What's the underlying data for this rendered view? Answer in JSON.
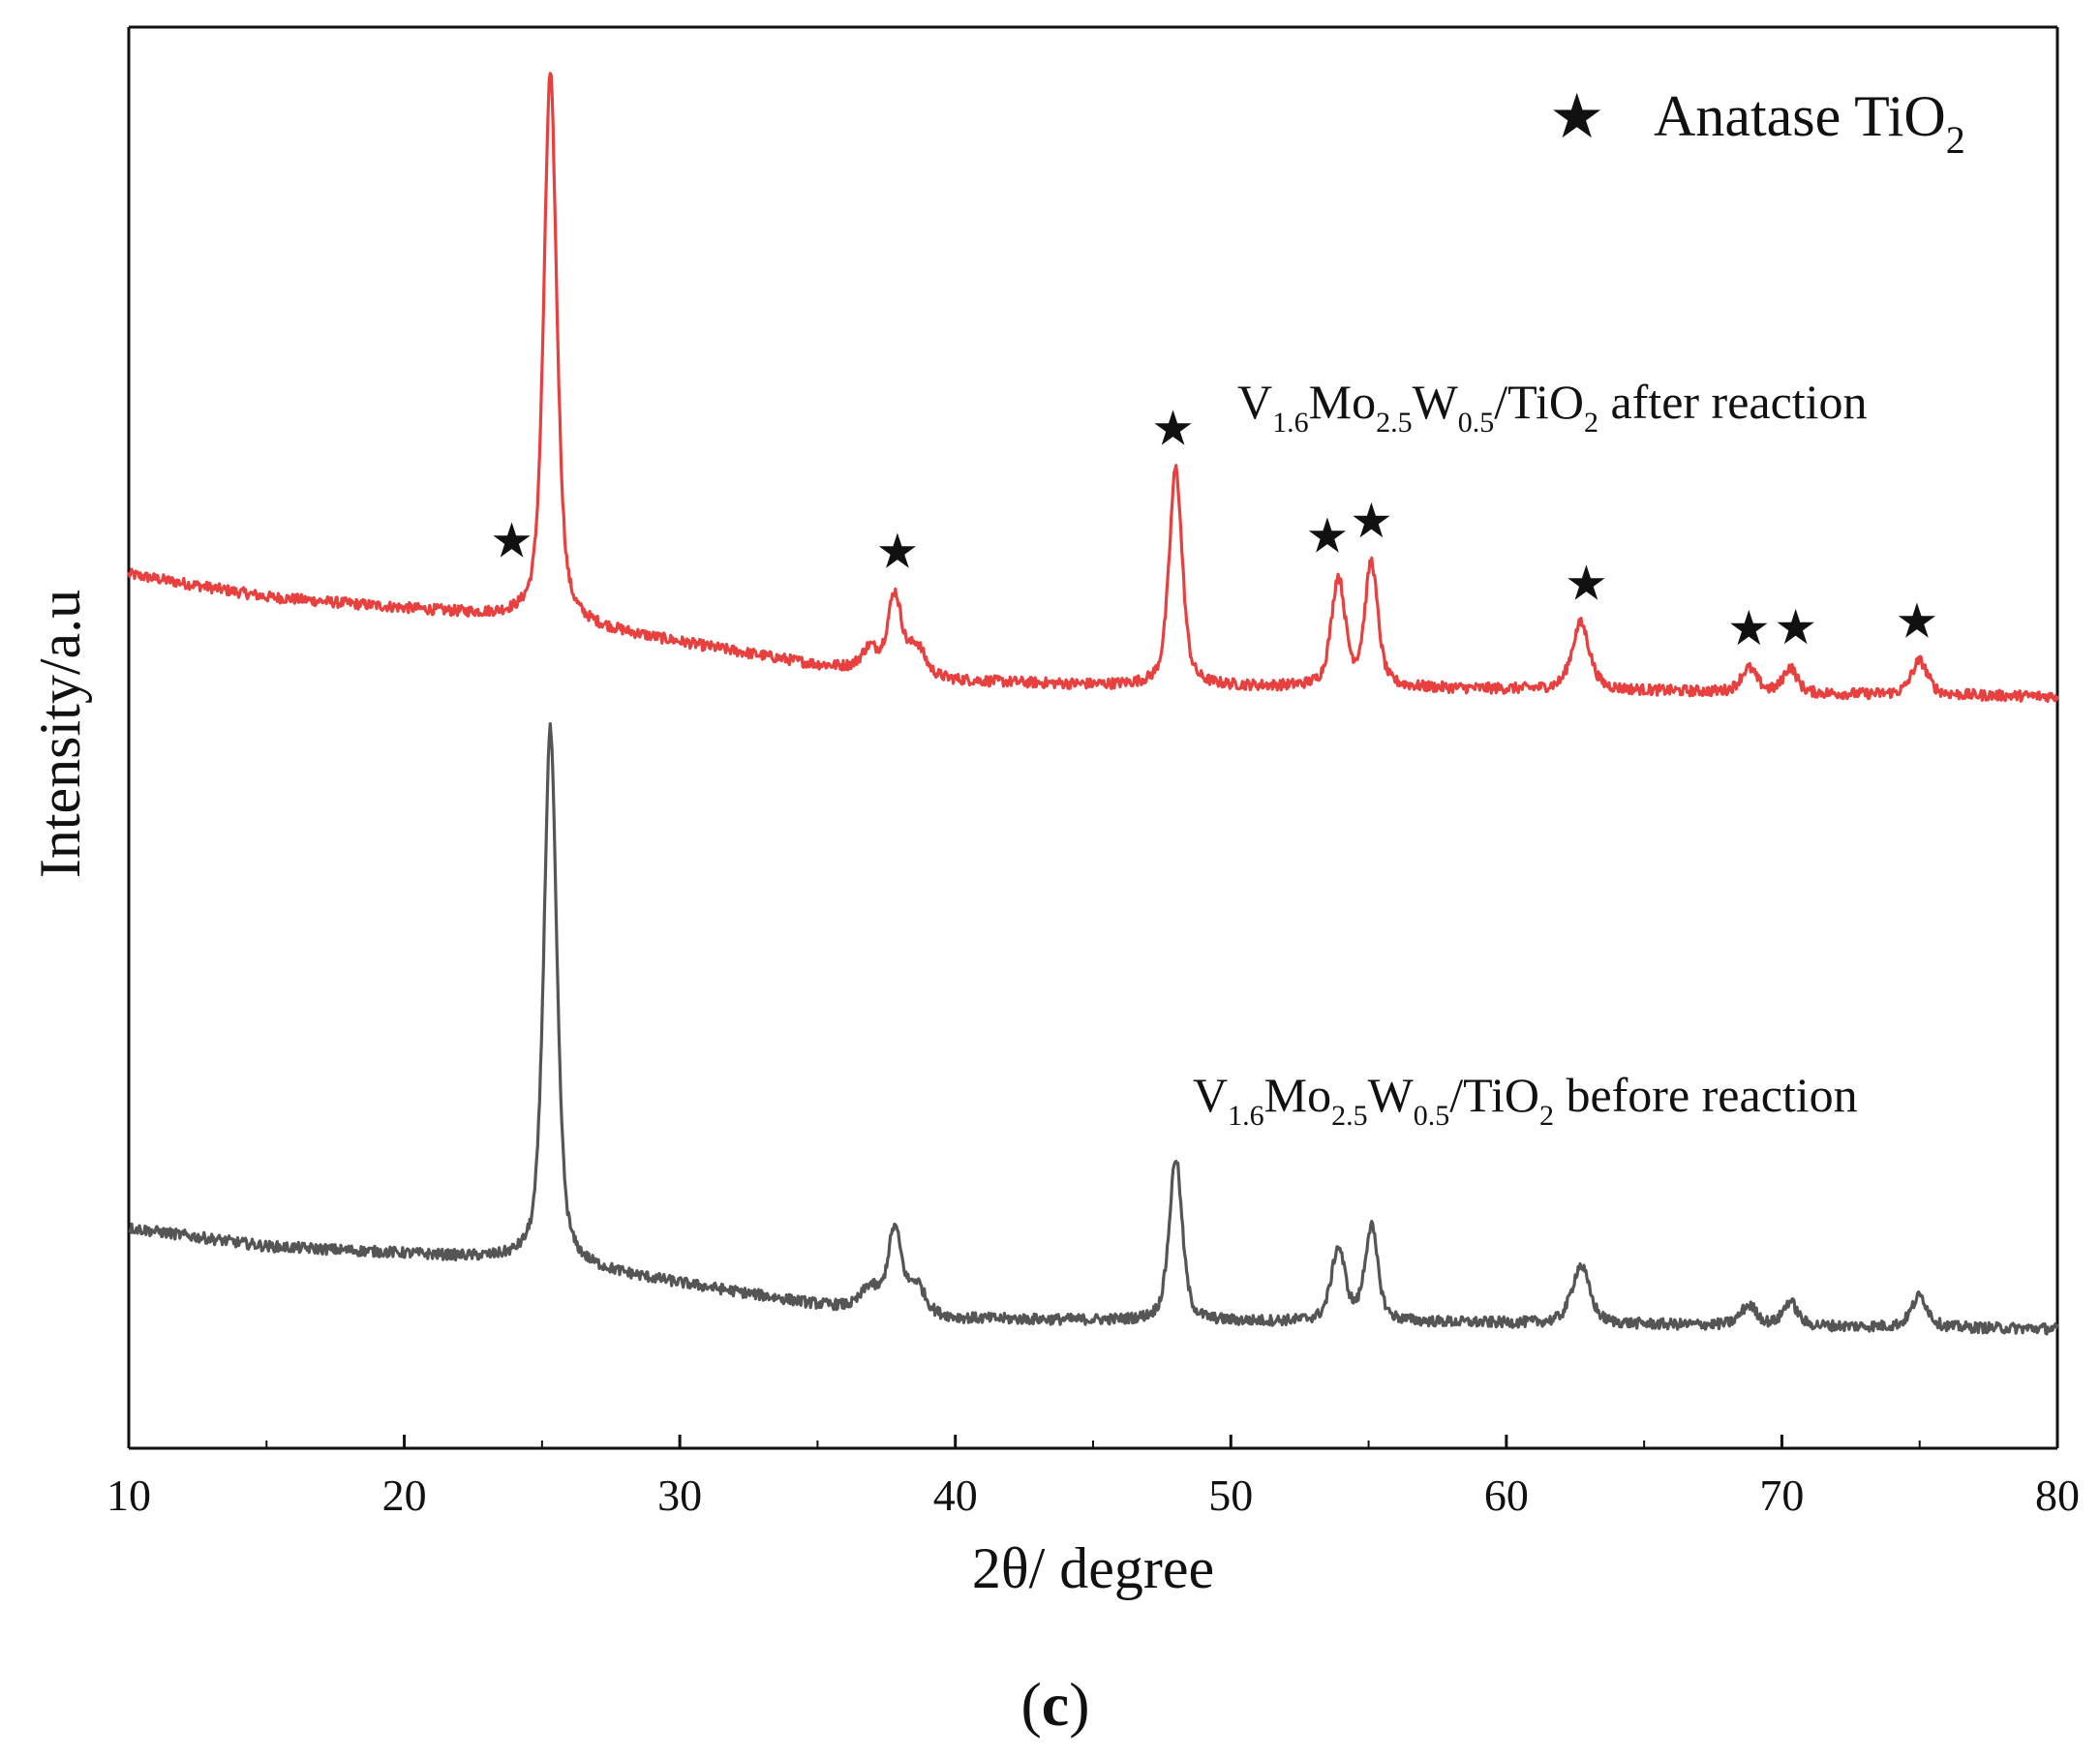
{
  "chart_data": {
    "type": "line",
    "xlabel": "2θ/ degree",
    "ylabel": "Intensity/a.u",
    "xlim": [
      10,
      80
    ],
    "x_ticks": [
      10,
      20,
      30,
      40,
      50,
      60,
      70,
      80
    ],
    "y_ticks": [],
    "grid": false,
    "y_units": "stacked arbitrary units, baseline 0 at bottom axis, 100 at top axis",
    "legend": {
      "position": "top-right",
      "marker": "★",
      "label_main": "Anatase TiO",
      "label_sub": "2"
    },
    "series": [
      {
        "name": "V1.6Mo2.5W0.5/TiO2 after reaction",
        "label_parts": {
          "v": "V",
          "v_sub": "1.6",
          "mo": "Mo",
          "mo_sub": "2.5",
          "w": "W",
          "w_sub": "0.5",
          "tio": "/TiO",
          "tio_sub": "2",
          "rest": " after reaction"
        },
        "color": "#e8403f",
        "baseline_points": [
          [
            10,
            61.5
          ],
          [
            15,
            59.9
          ],
          [
            20,
            59.1
          ],
          [
            25,
            58.3
          ],
          [
            30,
            56.7
          ],
          [
            35,
            55.1
          ],
          [
            40,
            54.0
          ],
          [
            45,
            53.7
          ],
          [
            50,
            53.6
          ],
          [
            55,
            53.5
          ],
          [
            60,
            53.4
          ],
          [
            65,
            53.3
          ],
          [
            70,
            53.1
          ],
          [
            75,
            53.0
          ],
          [
            80,
            52.9
          ]
        ],
        "peaks": [
          {
            "x": 25.3,
            "height": 38.5,
            "width": 0.28
          },
          {
            "x": 36.9,
            "height": 1.5,
            "width": 0.35
          },
          {
            "x": 37.8,
            "height": 5.5,
            "width": 0.3
          },
          {
            "x": 38.6,
            "height": 2.0,
            "width": 0.35
          },
          {
            "x": 48.0,
            "height": 15.3,
            "width": 0.28
          },
          {
            "x": 53.9,
            "height": 7.6,
            "width": 0.3
          },
          {
            "x": 55.1,
            "height": 8.7,
            "width": 0.28
          },
          {
            "x": 62.7,
            "height": 4.7,
            "width": 0.38
          },
          {
            "x": 68.8,
            "height": 1.7,
            "width": 0.35
          },
          {
            "x": 70.3,
            "height": 1.8,
            "width": 0.3
          },
          {
            "x": 75.0,
            "height": 2.4,
            "width": 0.35
          }
        ],
        "star_markers": [
          23.9,
          37.9,
          47.9,
          53.5,
          55.1,
          62.9,
          68.8,
          70.5,
          74.9
        ]
      },
      {
        "name": "V1.6Mo2.5W0.5/TiO2 before reaction",
        "label_parts": {
          "v": "V",
          "v_sub": "1.6",
          "mo": "Mo",
          "mo_sub": "2.5",
          "w": "W",
          "w_sub": "0.5",
          "tio": "/TiO",
          "tio_sub": "2",
          "rest": " before reaction"
        },
        "color": "#555555",
        "baseline_points": [
          [
            10,
            15.5
          ],
          [
            15,
            14.2
          ],
          [
            20,
            13.7
          ],
          [
            25,
            13.1
          ],
          [
            30,
            11.6
          ],
          [
            35,
            10.1
          ],
          [
            40,
            9.1
          ],
          [
            45,
            9.0
          ],
          [
            50,
            8.9
          ],
          [
            55,
            8.9
          ],
          [
            60,
            8.8
          ],
          [
            65,
            8.7
          ],
          [
            70,
            8.6
          ],
          [
            75,
            8.5
          ],
          [
            80,
            8.4
          ]
        ],
        "peaks": [
          {
            "x": 25.3,
            "height": 37.6,
            "width": 0.28
          },
          {
            "x": 36.9,
            "height": 1.5,
            "width": 0.35
          },
          {
            "x": 37.8,
            "height": 5.8,
            "width": 0.3
          },
          {
            "x": 38.6,
            "height": 2.0,
            "width": 0.35
          },
          {
            "x": 48.0,
            "height": 11.5,
            "width": 0.28
          },
          {
            "x": 53.9,
            "height": 5.1,
            "width": 0.3
          },
          {
            "x": 55.1,
            "height": 6.6,
            "width": 0.28
          },
          {
            "x": 62.7,
            "height": 4.1,
            "width": 0.38
          },
          {
            "x": 68.8,
            "height": 1.4,
            "width": 0.35
          },
          {
            "x": 70.3,
            "height": 1.7,
            "width": 0.3
          },
          {
            "x": 75.0,
            "height": 2.2,
            "width": 0.35
          }
        ]
      }
    ]
  },
  "figure_label": {
    "open": "(",
    "letter": "c",
    "close": ")"
  }
}
